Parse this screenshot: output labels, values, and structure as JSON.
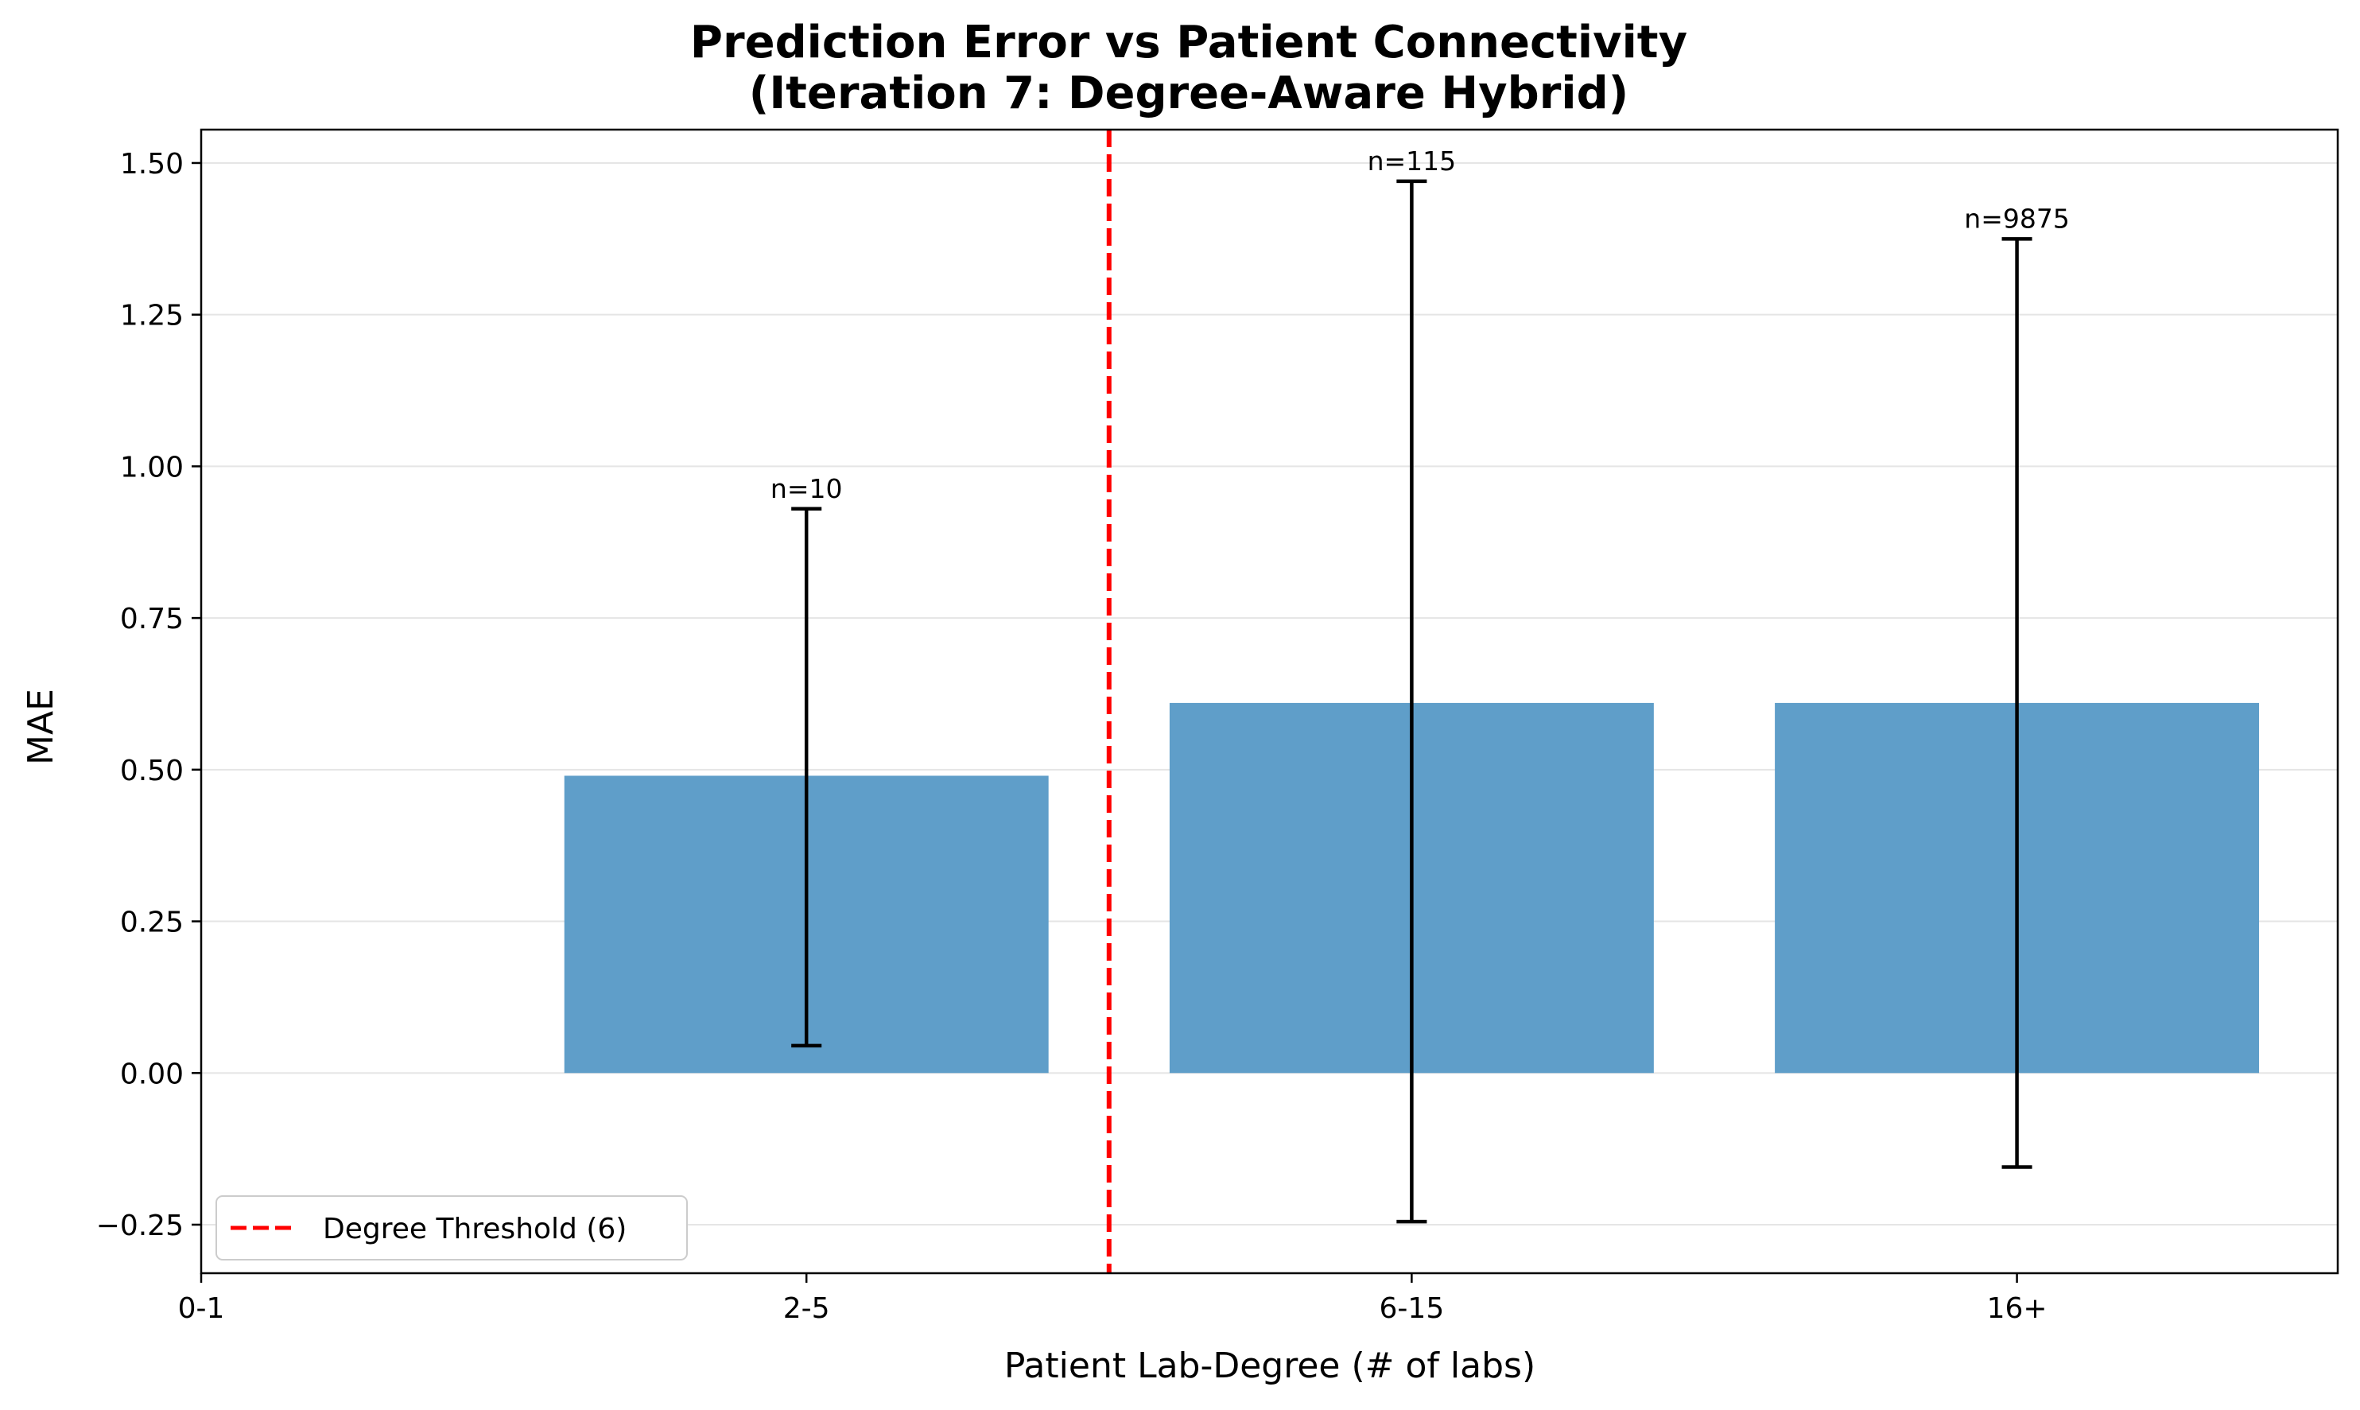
{
  "chart_data": {
    "type": "bar",
    "title_lines": [
      "Prediction Error vs Patient Connectivity",
      "(Iteration 7: Degree-Aware Hybrid)"
    ],
    "xlabel": "Patient Lab-Degree (# of labs)",
    "ylabel": "MAE",
    "categories": [
      "0-1",
      "2-5",
      "6-15",
      "16+"
    ],
    "bars": [
      {
        "category": "2-5",
        "value": 0.49,
        "err_low": 0.045,
        "err_high": 0.93,
        "n_label": "n=10"
      },
      {
        "category": "6-15",
        "value": 0.61,
        "err_low": -0.245,
        "err_high": 1.47,
        "n_label": "n=115"
      },
      {
        "category": "16+",
        "value": 0.61,
        "err_low": -0.155,
        "err_high": 1.375,
        "n_label": "n=9875"
      }
    ],
    "yticks": [
      "−0.25",
      "0.00",
      "0.25",
      "0.50",
      "0.75",
      "1.00",
      "1.25",
      "1.50"
    ],
    "ytick_values": [
      -0.25,
      0,
      0.25,
      0.5,
      0.75,
      1.0,
      1.25,
      1.5
    ],
    "ylim": [
      -0.33,
      1.555
    ],
    "xlim": [
      0,
      3.53
    ],
    "threshold_x": 1.5,
    "legend": {
      "label": "Degree Threshold (6)",
      "placement": "lower left"
    },
    "grid": "y",
    "colors": {
      "bar": "#5f9ec9",
      "threshold": "#ff0000",
      "errorbar": "#000000",
      "grid": "#e5e5e5"
    }
  }
}
